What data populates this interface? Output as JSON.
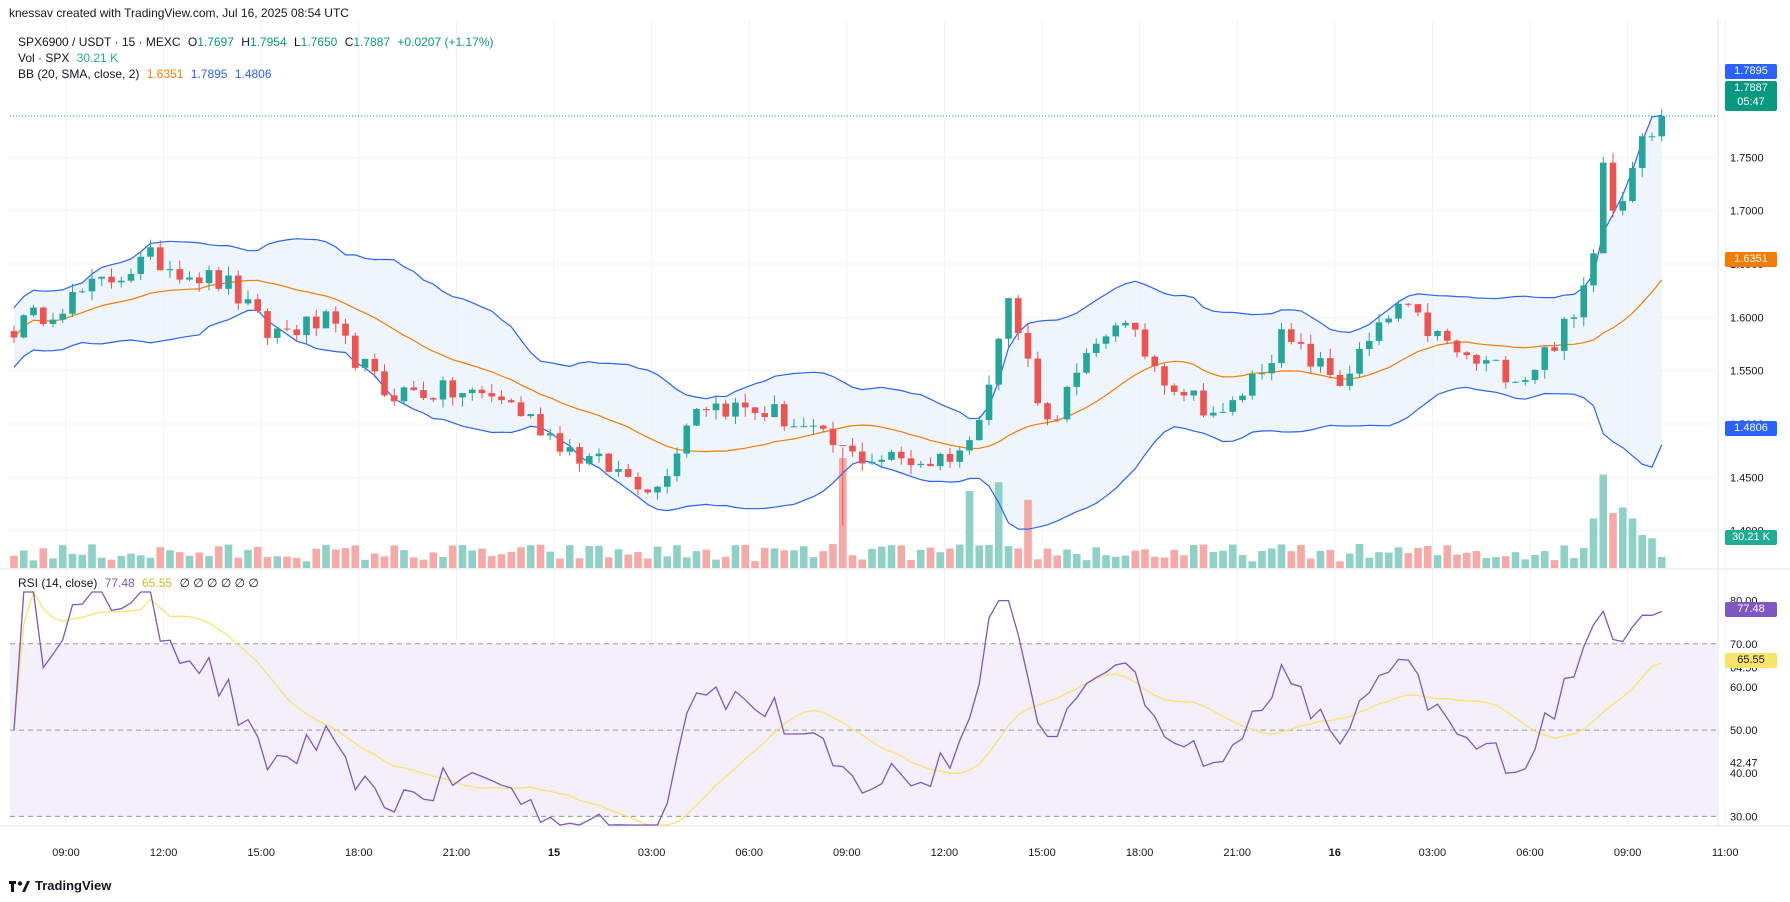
{
  "header": {
    "creator_line": "knessav created with TradingView.com, Jul 16, 2025 08:54 UTC"
  },
  "legend": {
    "symbol": "SPX6900 / USDT · 15 · MEXC",
    "open_label": "O",
    "open": "1.7697",
    "high_label": "H",
    "high": "1.7954",
    "low_label": "L",
    "low": "1.7650",
    "close_label": "C",
    "close": "1.7887",
    "change": "+0.0207 (+1.17%)",
    "vol_label": "Vol · SPX",
    "vol_value": "30.21 K",
    "bb_label": "BB (20, SMA, close, 2)",
    "bb_mid": "1.6351",
    "bb_upper": "1.7895",
    "bb_lower": "1.4806",
    "rsi_label": "RSI (14, close)",
    "rsi_value": "77.48",
    "rsi_ma": "65.55",
    "rsi_extra": "∅ ∅ ∅ ∅ ∅ ∅"
  },
  "price_labels": {
    "bb_upper": "1.7895",
    "close": "1.7887",
    "countdown": "05:47",
    "bb_mid": "1.6351",
    "bb_lower": "1.4806",
    "volume": "30.21 K",
    "rsi": "77.48",
    "rsi_ma": "65.55"
  },
  "colors": {
    "up": "#26a69a",
    "down": "#ef5350",
    "vol_up": "#8fd1c6",
    "vol_down": "#f7a9a7",
    "bb_band": "#2962ff",
    "bb_mid": "#f57c00",
    "bb_fill": "#e8f2fb",
    "rsi_line": "#7e57c2",
    "rsi_ma": "#f8e36b",
    "rsi_fill": "#f3effb",
    "close_label_bg": "#089981",
    "upper_label_bg": "#2962ff",
    "mid_label_bg": "#f57c00",
    "lower_label_bg": "#2962ff"
  },
  "brand": {
    "name": "TradingView",
    "logo_icon": "tradingview-logo-icon"
  },
  "chart_data": {
    "type": "candlestick",
    "symbol": "SPX6900 / USDT",
    "interval": "15",
    "exchange": "MEXC",
    "x_ticks": [
      "09:00",
      "12:00",
      "15:00",
      "18:00",
      "21:00",
      "15",
      "03:00",
      "06:00",
      "09:00",
      "12:00",
      "15:00",
      "18:00",
      "21:00",
      "16",
      "03:00",
      "06:00",
      "09:00",
      "11:00"
    ],
    "price_ticks": [
      "1.7500",
      "1.7000",
      "1.6500",
      "1.6000",
      "1.5500",
      "1.5000",
      "1.4500",
      "1.4000"
    ],
    "price_range": [
      1.365,
      1.83
    ],
    "rsi_ticks": [
      "80.00",
      "70.00",
      "64.50",
      "60.00",
      "50.00",
      "42.47",
      "40.00",
      "30.00"
    ],
    "rsi_range": [
      28,
      82
    ],
    "rsi_levels": {
      "upper": 70,
      "middle": 50,
      "lower": 30
    },
    "key_points": [
      {
        "bar": 0,
        "price": 1.59
      },
      {
        "bar": 14,
        "price": 1.655
      },
      {
        "bar": 22,
        "price": 1.63
      },
      {
        "bar": 26,
        "price": 1.585
      },
      {
        "bar": 32,
        "price": 1.595
      },
      {
        "bar": 38,
        "price": 1.53
      },
      {
        "bar": 44,
        "price": 1.53
      },
      {
        "bar": 50,
        "price": 1.525
      },
      {
        "bar": 58,
        "price": 1.47
      },
      {
        "bar": 66,
        "price": 1.44
      },
      {
        "bar": 70,
        "price": 1.52
      },
      {
        "bar": 78,
        "price": 1.51
      },
      {
        "bar": 86,
        "price": 1.47
      },
      {
        "bar": 94,
        "price": 1.465
      },
      {
        "bar": 98,
        "price": 1.48
      },
      {
        "bar": 102,
        "price": 1.615
      },
      {
        "bar": 106,
        "price": 1.5
      },
      {
        "bar": 113,
        "price": 1.6
      },
      {
        "bar": 118,
        "price": 1.545
      },
      {
        "bar": 124,
        "price": 1.505
      },
      {
        "bar": 130,
        "price": 1.58
      },
      {
        "bar": 136,
        "price": 1.54
      },
      {
        "bar": 142,
        "price": 1.61
      },
      {
        "bar": 149,
        "price": 1.56
      },
      {
        "bar": 155,
        "price": 1.545
      },
      {
        "bar": 160,
        "price": 1.6
      },
      {
        "bar": 162,
        "price": 1.66
      },
      {
        "bar": 163,
        "price": 1.745
      },
      {
        "bar": 164,
        "price": 1.7
      },
      {
        "bar": 165,
        "price": 1.709
      },
      {
        "bar": 166,
        "price": 1.74
      },
      {
        "bar": 167,
        "price": 1.7697
      },
      {
        "bar": 168,
        "price": 1.7887
      }
    ],
    "last_candle": {
      "open": 1.7697,
      "high": 1.7954,
      "low": 1.765,
      "close": 1.7887
    },
    "bollinger_last": {
      "upper": 1.7895,
      "basis": 1.6351,
      "lower": 1.4806
    },
    "volume_last": "30.21 K",
    "rsi_last": {
      "rsi": 77.48,
      "ma": 65.55
    },
    "volume_spikes": [
      {
        "bar": 85,
        "label": "large red"
      },
      {
        "bar": 98,
        "label": "large green"
      },
      {
        "bar": 101,
        "label": "green"
      },
      {
        "bar": 104,
        "label": "red"
      },
      {
        "bar": 163,
        "label": "largest green"
      }
    ]
  }
}
